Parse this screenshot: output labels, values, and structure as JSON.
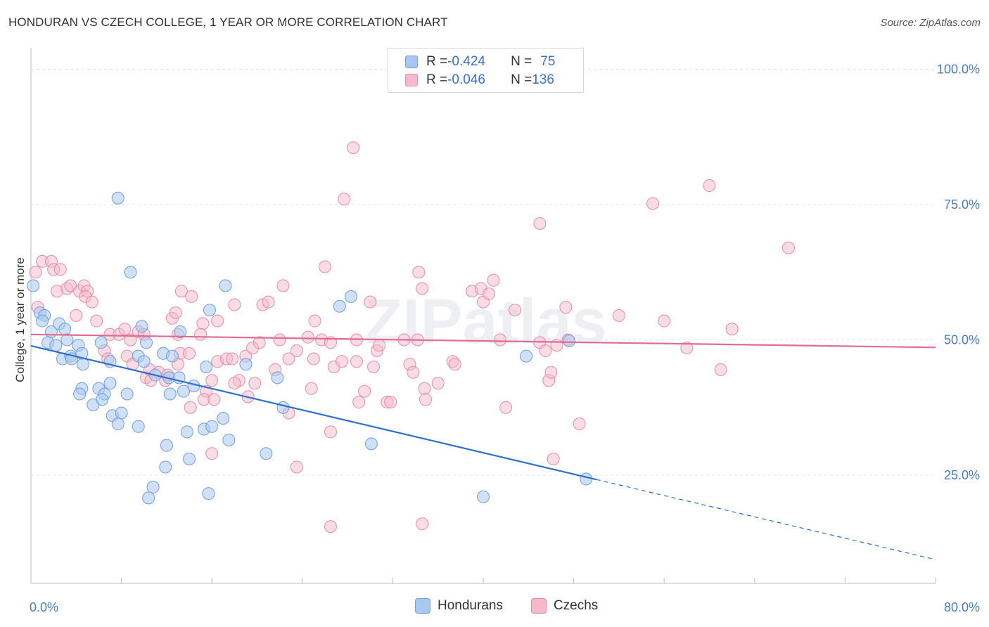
{
  "header": {
    "title": "HONDURAN VS CZECH COLLEGE, 1 YEAR OR MORE CORRELATION CHART",
    "source": "Source: ZipAtlas.com"
  },
  "watermark": "ZIPatlas",
  "legend": {
    "rows": [
      {
        "r_label": "R = ",
        "r_value": "-0.424",
        "n_label": "N = ",
        "n_value": "75"
      },
      {
        "r_label": "R = ",
        "r_value": "-0.046",
        "n_label": "N = ",
        "n_value": "136"
      }
    ]
  },
  "bottom_legend": {
    "items": [
      {
        "label": "Hondurans"
      },
      {
        "label": "Czechs"
      }
    ]
  },
  "chart_data": {
    "type": "scatter",
    "title": "HONDURAN VS CZECH COLLEGE, 1 YEAR OR MORE CORRELATION CHART",
    "xlabel": "",
    "ylabel": "College, 1 year or more",
    "xlim": [
      0,
      80
    ],
    "ylim": [
      5,
      105
    ],
    "x_ticks_labeled": [
      "0.0%",
      "80.0%"
    ],
    "y_ticks": [
      {
        "value": 25,
        "label": "25.0%"
      },
      {
        "value": 50,
        "label": "50.0%"
      },
      {
        "value": 75,
        "label": "75.0%"
      },
      {
        "value": 100,
        "label": "100.0%"
      }
    ],
    "grid": true,
    "legend_position": "top-center",
    "colors": {
      "hondurans_fill": "#a9c8f0",
      "hondurans_stroke": "#6f9fdc",
      "hondurans_line": "#2e6fd0",
      "czechs_fill": "#f5b9cc",
      "czechs_stroke": "#e88aa8",
      "czechs_line": "#e26a93",
      "tick_text": "#4a7cc4"
    },
    "series": [
      {
        "name": "Hondurans",
        "r": -0.424,
        "n": 75,
        "trend": {
          "x0": 0,
          "y0": 48.9,
          "x1": 50,
          "y1": 24.2,
          "dash_to_x": 80,
          "dash_to_y": 9.4
        },
        "points": [
          [
            0.2,
            60.0
          ],
          [
            0.8,
            55.0
          ],
          [
            1.2,
            54.5
          ],
          [
            1.0,
            53.5
          ],
          [
            1.8,
            51.5
          ],
          [
            2.5,
            53.0
          ],
          [
            3.0,
            52.0
          ],
          [
            1.5,
            49.5
          ],
          [
            2.2,
            49.0
          ],
          [
            3.2,
            50.0
          ],
          [
            4.2,
            49.0
          ],
          [
            2.8,
            46.5
          ],
          [
            3.5,
            47.0
          ],
          [
            4.5,
            47.5
          ],
          [
            3.6,
            46.5
          ],
          [
            4.6,
            45.5
          ],
          [
            6.2,
            49.5
          ],
          [
            7.0,
            46.0
          ],
          [
            6.0,
            41.0
          ],
          [
            4.5,
            41.0
          ],
          [
            4.3,
            40.0
          ],
          [
            5.5,
            38.0
          ],
          [
            6.5,
            40.0
          ],
          [
            6.3,
            39.0
          ],
          [
            7.0,
            42.0
          ],
          [
            8.5,
            40.0
          ],
          [
            7.2,
            36.0
          ],
          [
            8.0,
            36.5
          ],
          [
            7.7,
            34.5
          ],
          [
            9.5,
            34.0
          ],
          [
            7.7,
            76.2
          ],
          [
            8.8,
            62.5
          ],
          [
            9.5,
            47.0
          ],
          [
            10.0,
            46.0
          ],
          [
            9.8,
            52.5
          ],
          [
            10.2,
            49.5
          ],
          [
            11.7,
            47.5
          ],
          [
            12.5,
            47.0
          ],
          [
            12.2,
            43.0
          ],
          [
            11.0,
            43.5
          ],
          [
            13.1,
            43.0
          ],
          [
            13.2,
            51.5
          ],
          [
            12.3,
            40.0
          ],
          [
            13.5,
            40.5
          ],
          [
            14.4,
            41.5
          ],
          [
            15.5,
            45.0
          ],
          [
            15.8,
            55.5
          ],
          [
            17.2,
            60.0
          ],
          [
            19.0,
            45.5
          ],
          [
            12.0,
            30.5
          ],
          [
            11.9,
            26.5
          ],
          [
            13.8,
            33.0
          ],
          [
            14.0,
            28.0
          ],
          [
            15.3,
            33.5
          ],
          [
            16.0,
            34.0
          ],
          [
            17.0,
            35.5
          ],
          [
            17.5,
            31.5
          ],
          [
            10.8,
            22.8
          ],
          [
            10.4,
            20.8
          ],
          [
            15.7,
            21.6
          ],
          [
            20.8,
            29.0
          ],
          [
            21.8,
            43.0
          ],
          [
            22.3,
            37.5
          ],
          [
            27.3,
            56.2
          ],
          [
            28.3,
            58.0
          ],
          [
            30.1,
            30.8
          ],
          [
            40.0,
            21.0
          ],
          [
            49.1,
            24.3
          ],
          [
            43.8,
            47.0
          ],
          [
            47.6,
            49.8
          ]
        ]
      },
      {
        "name": "Czechs",
        "r": -0.046,
        "n": 136,
        "trend": {
          "x0": 0,
          "y0": 51.0,
          "x1": 80,
          "y1": 48.6
        },
        "points": [
          [
            0.4,
            62.5
          ],
          [
            0.6,
            56.0
          ],
          [
            1.0,
            64.5
          ],
          [
            1.8,
            64.5
          ],
          [
            2.0,
            63.0
          ],
          [
            2.6,
            63.0
          ],
          [
            2.3,
            59.0
          ],
          [
            3.2,
            59.5
          ],
          [
            3.5,
            60.0
          ],
          [
            4.3,
            59.0
          ],
          [
            4.7,
            60.0
          ],
          [
            5.0,
            59.0
          ],
          [
            4.8,
            58.0
          ],
          [
            5.4,
            57.0
          ],
          [
            4.0,
            54.5
          ],
          [
            5.8,
            53.5
          ],
          [
            7.0,
            51.0
          ],
          [
            7.8,
            51.0
          ],
          [
            8.3,
            52.0
          ],
          [
            8.8,
            50.0
          ],
          [
            9.5,
            51.5
          ],
          [
            10.0,
            51.0
          ],
          [
            6.5,
            48.0
          ],
          [
            6.8,
            46.5
          ],
          [
            8.5,
            47.0
          ],
          [
            9.0,
            45.5
          ],
          [
            10.2,
            43.0
          ],
          [
            10.5,
            44.5
          ],
          [
            11.3,
            44.0
          ],
          [
            10.6,
            42.5
          ],
          [
            11.9,
            42.5
          ],
          [
            12.1,
            43.5
          ],
          [
            12.5,
            54.0
          ],
          [
            12.8,
            55.0
          ],
          [
            13.0,
            51.0
          ],
          [
            13.2,
            47.5
          ],
          [
            13.0,
            45.5
          ],
          [
            14.0,
            47.5
          ],
          [
            13.3,
            59.0
          ],
          [
            14.2,
            58.0
          ],
          [
            15.2,
            53.0
          ],
          [
            15.0,
            51.0
          ],
          [
            16.5,
            53.5
          ],
          [
            16.0,
            42.5
          ],
          [
            16.5,
            46.0
          ],
          [
            15.5,
            40.5
          ],
          [
            15.3,
            39.0
          ],
          [
            14.1,
            37.5
          ],
          [
            16.2,
            39.0
          ],
          [
            16.0,
            29.0
          ],
          [
            17.3,
            46.5
          ],
          [
            17.8,
            46.5
          ],
          [
            18.0,
            56.5
          ],
          [
            18.4,
            42.5
          ],
          [
            18.0,
            42.0
          ],
          [
            19.0,
            47.0
          ],
          [
            19.6,
            48.5
          ],
          [
            19.2,
            39.5
          ],
          [
            19.8,
            42.0
          ],
          [
            20.2,
            49.5
          ],
          [
            20.5,
            56.5
          ],
          [
            21.0,
            57.0
          ],
          [
            21.6,
            44.5
          ],
          [
            22.0,
            50.0
          ],
          [
            22.3,
            60.0
          ],
          [
            22.8,
            46.5
          ],
          [
            22.8,
            36.5
          ],
          [
            23.5,
            48.0
          ],
          [
            23.5,
            26.5
          ],
          [
            24.5,
            50.5
          ],
          [
            24.8,
            41.0
          ],
          [
            25.0,
            46.5
          ],
          [
            25.1,
            53.5
          ],
          [
            25.7,
            50.0
          ],
          [
            26.0,
            63.5
          ],
          [
            26.5,
            49.5
          ],
          [
            26.8,
            45.0
          ],
          [
            26.5,
            33.0
          ],
          [
            26.5,
            15.5
          ],
          [
            27.5,
            46.0
          ],
          [
            27.7,
            76.0
          ],
          [
            28.5,
            85.5
          ],
          [
            28.8,
            46.0
          ],
          [
            28.8,
            50.0
          ],
          [
            29.0,
            38.5
          ],
          [
            29.5,
            40.5
          ],
          [
            30.0,
            57.0
          ],
          [
            30.3,
            45.0
          ],
          [
            30.6,
            48.0
          ],
          [
            30.8,
            49.0
          ],
          [
            31.5,
            38.5
          ],
          [
            31.8,
            38.5
          ],
          [
            33.0,
            50.0
          ],
          [
            33.5,
            45.5
          ],
          [
            33.8,
            44.0
          ],
          [
            34.2,
            50.0
          ],
          [
            34.3,
            62.5
          ],
          [
            34.6,
            59.5
          ],
          [
            34.6,
            16.0
          ],
          [
            34.8,
            41.0
          ],
          [
            34.9,
            39.0
          ],
          [
            36.0,
            42.0
          ],
          [
            37.3,
            46.0
          ],
          [
            37.5,
            45.5
          ],
          [
            39.0,
            59.0
          ],
          [
            39.8,
            59.5
          ],
          [
            40.0,
            57.0
          ],
          [
            40.5,
            58.5
          ],
          [
            40.9,
            61.0
          ],
          [
            41.5,
            50.0
          ],
          [
            42.0,
            37.5
          ],
          [
            42.8,
            55.5
          ],
          [
            45.0,
            71.5
          ],
          [
            45.0,
            49.5
          ],
          [
            45.5,
            48.0
          ],
          [
            45.8,
            42.5
          ],
          [
            46.0,
            44.0
          ],
          [
            46.5,
            49.0
          ],
          [
            46.2,
            28.0
          ],
          [
            47.3,
            56.0
          ],
          [
            47.5,
            50.0
          ],
          [
            48.5,
            34.5
          ],
          [
            52.0,
            54.5
          ],
          [
            55.0,
            75.2
          ],
          [
            56.0,
            53.5
          ],
          [
            60.0,
            78.5
          ],
          [
            61.0,
            44.5
          ],
          [
            62.0,
            52.0
          ],
          [
            67.0,
            67.0
          ],
          [
            58.0,
            48.5
          ]
        ]
      }
    ]
  }
}
